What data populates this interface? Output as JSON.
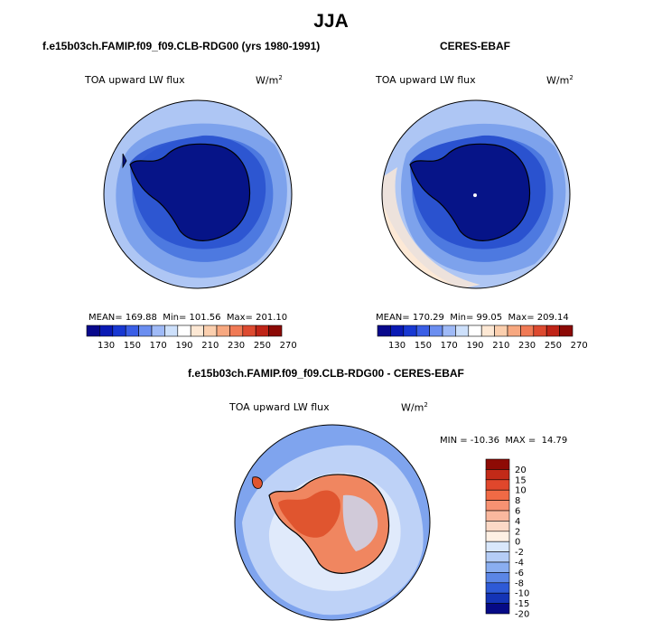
{
  "main_title": "JJA",
  "panels": [
    {
      "title": "f.e15b03ch.FAMIP.f09_f09.CLB-RDG00 (yrs 1980-1991)",
      "variable": "TOA upward LW flux",
      "units_base": "W/m",
      "units_exp": "2",
      "mean_label": "MEAN=",
      "mean": "169.88",
      "min_label": "Min=",
      "min": "101.56",
      "max_label": "Max=",
      "max": "201.10"
    },
    {
      "title": "CERES-EBAF",
      "variable": "TOA upward LW flux",
      "units_base": "W/m",
      "units_exp": "2",
      "mean_label": "MEAN=",
      "mean": "170.29",
      "min_label": "Min=",
      "min": "99.05",
      "max_label": "Max=",
      "max": "209.14"
    },
    {
      "title": "f.e15b03ch.FAMIP.f09_f09.CLB-RDG00 - CERES-EBAF",
      "variable": "TOA upward LW flux",
      "units_base": "W/m",
      "units_exp": "2",
      "minmax": "MIN = -10.36  MAX =  14.79"
    }
  ],
  "abs_colorbar": {
    "labels": [
      "130",
      "150",
      "170",
      "190",
      "210",
      "230",
      "250",
      "270"
    ],
    "colors": [
      "#08088c",
      "#0a1ab4",
      "#1838d2",
      "#3a5ee6",
      "#6b8ef0",
      "#9fbaf7",
      "#cde0fb",
      "#ffffff",
      "#fde8d4",
      "#fbcfae",
      "#f7a880",
      "#f07a55",
      "#dd4a30",
      "#bf2417",
      "#8c0a06"
    ]
  },
  "diff_colorbar": {
    "labels": [
      "20",
      "15",
      "10",
      "8",
      "6",
      "4",
      "2",
      "0",
      "-2",
      "-4",
      "-6",
      "-8",
      "-10",
      "-15",
      "-20"
    ],
    "colors": [
      "#8e0b05",
      "#c22a18",
      "#e0472c",
      "#f06a45",
      "#f79272",
      "#fab89e",
      "#fcd9c6",
      "#fef0e4",
      "#d9e7fb",
      "#b5cdf6",
      "#8aaef0",
      "#5b86e6",
      "#2e5ad6",
      "#1434b6",
      "#060a86"
    ]
  },
  "map_colors": {
    "outer_light": "#aec6f4",
    "middle": "#7da2ec",
    "inner": "#4d79e0",
    "ring": "#2a52cf",
    "continent": "#061488",
    "continent_edge": "#0d22b0",
    "warm_band": "#fde8d6",
    "diff_bg": "#7fa4ee",
    "diff_light": "#c9dbf8",
    "diff_warm": "#f08660",
    "diff_hot": "#e0552f"
  }
}
